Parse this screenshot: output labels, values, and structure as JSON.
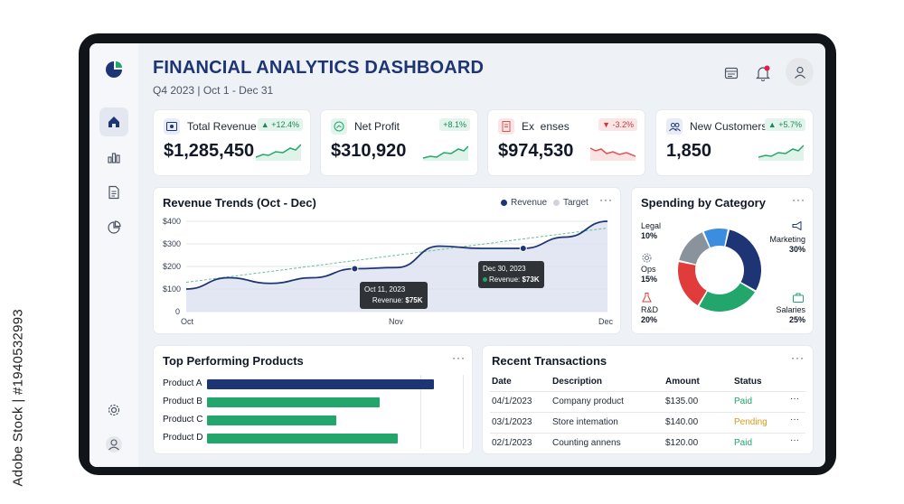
{
  "watermark": "Adobe Stock | #1940532993",
  "header": {
    "title": "FINANCIAL ANALYTICS DASHBOARD",
    "subtitle": "Q4 2023 | Oct 1 - Dec 31",
    "icons": [
      "calendar-icon",
      "bell-icon",
      "user-avatar-icon"
    ],
    "notification_color": "#e11d48"
  },
  "sidebar": {
    "items": [
      {
        "icon": "home-icon",
        "active": true
      },
      {
        "icon": "bar-chart-icon",
        "active": false
      },
      {
        "icon": "document-icon",
        "active": false
      },
      {
        "icon": "pie-chart-icon",
        "active": false
      }
    ],
    "bottom": [
      "settings-icon",
      "profile-icon"
    ]
  },
  "kpis": [
    {
      "label": "Total Revenue",
      "value": "$1,285,450",
      "change": "+12.4%",
      "trend": "up",
      "icon": "cash-icon",
      "color": "#22a66b"
    },
    {
      "label": "Net Profit",
      "value": "$310,920",
      "change": "+8.1%",
      "trend": "up",
      "icon": "profit-icon",
      "color": "#22a66b"
    },
    {
      "label": "Ex  enses",
      "value": "$974,530",
      "change": "-3.2%",
      "trend": "down",
      "icon": "receipt-icon",
      "color": "#e05252"
    },
    {
      "label": "New Customers",
      "value": "1,850",
      "change": "+5.7%",
      "trend": "up",
      "icon": "users-icon",
      "color": "#22a66b"
    }
  ],
  "revenue_chart": {
    "title": "Revenue Trends (Oct - Dec)",
    "legend": [
      "Revenue",
      "Target"
    ],
    "tooltips": [
      {
        "date": "Oct 11, 2023",
        "label": "Revenue:",
        "value": "$75K"
      },
      {
        "date": "Dec 30, 2023",
        "label": "Revenue:",
        "value": "$73K"
      }
    ]
  },
  "chart_data": [
    {
      "type": "line",
      "title": "Revenue Trends (Oct - Dec)",
      "x_tick_labels": [
        "Oct",
        "Nov",
        "Dec"
      ],
      "y_tick_labels": [
        "$400",
        "$300",
        "$200",
        "$100",
        "0"
      ],
      "ylim": [
        0,
        400
      ],
      "grid": true,
      "legend": "top-right",
      "series": [
        {
          "name": "Revenue",
          "color": "#1d3575",
          "x": [
            0,
            0.1,
            0.2,
            0.3,
            0.4,
            0.5,
            0.6,
            0.7,
            0.8,
            0.9,
            1.0
          ],
          "values": [
            100,
            150,
            125,
            150,
            190,
            195,
            290,
            280,
            280,
            330,
            400
          ]
        },
        {
          "name": "Target",
          "color": "#22a66b",
          "x": [
            0,
            1.0
          ],
          "values": [
            130,
            370
          ]
        }
      ]
    },
    {
      "type": "pie",
      "title": "Spending by Category",
      "slices": [
        {
          "name": "Marketing",
          "value": 30,
          "color": "#1d3575"
        },
        {
          "name": "Salaries",
          "value": 25,
          "color": "#22a66b"
        },
        {
          "name": "R&D",
          "value": 20,
          "color": "#e03c3c"
        },
        {
          "name": "Ops",
          "value": 15,
          "color": "#8a929c"
        },
        {
          "name": "Legal",
          "value": 10,
          "color": "#3b8de0"
        }
      ]
    },
    {
      "type": "bar",
      "title": "Top Performing Products",
      "categories": [
        "Product A",
        "Product B",
        "Product C",
        "Product D"
      ],
      "values": [
        100,
        76,
        57,
        84
      ],
      "colors": [
        "#1d3575",
        "#22a66b",
        "#22a66b",
        "#22a66b"
      ]
    }
  ],
  "spending": {
    "title": "Spending by Category",
    "labels": [
      {
        "name": "Legal",
        "pct": "10%"
      },
      {
        "name": "Marketing",
        "pct": "30%"
      },
      {
        "name": "Ops",
        "pct": "15%"
      },
      {
        "name": "R&D",
        "pct": "20%"
      },
      {
        "name": "Salaries",
        "pct": "25%"
      }
    ]
  },
  "products": {
    "title": "Top Performing Products"
  },
  "transactions": {
    "title": "Recent Transactions",
    "columns": [
      "Date",
      "Description",
      "Amount",
      "Status"
    ],
    "rows": [
      {
        "date": "04/1/2023",
        "description": "Company product",
        "amount": "$135.00",
        "status": "Paid",
        "status_color": "#22a66b"
      },
      {
        "date": "03/1/2023",
        "description": "Store intemation",
        "amount": "$140.00",
        "status": "Pending",
        "status_color": "#d99a1a"
      },
      {
        "date": "02/1/2023",
        "description": "Counting annens",
        "amount": "$120.00",
        "status": "Paid",
        "status_color": "#22a66b"
      }
    ]
  },
  "more_label": "···"
}
